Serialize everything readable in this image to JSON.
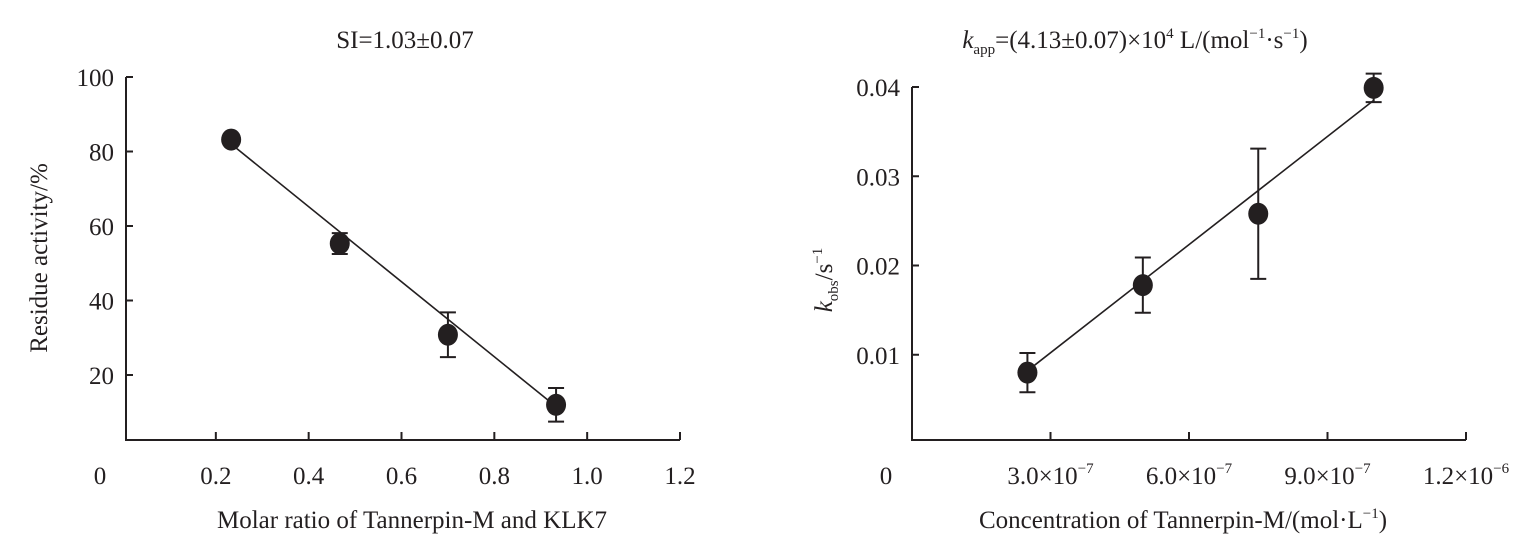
{
  "chart_data": [
    {
      "type": "scatter",
      "title": "SI=1.03±0.07",
      "xlabel": "Molar ratio of Tannerpin-M and KLK7",
      "ylabel": "Residue activity/%",
      "xlim": [
        0,
        1.2
      ],
      "ylim": [
        0,
        100
      ],
      "xticks": [
        "0",
        "0.2",
        "0.4",
        "0.6",
        "0.8",
        "1.0",
        "1.2"
      ],
      "xtick_values": [
        0,
        0.2,
        0.4,
        0.6,
        0.8,
        1.0,
        1.2
      ],
      "yticks": [
        "20",
        "40",
        "60",
        "80",
        "100"
      ],
      "ytick_values": [
        20,
        40,
        60,
        80,
        100
      ],
      "points": {
        "x": [
          0.233,
          0.467,
          0.7,
          0.933
        ],
        "y": [
          83.2,
          55.3,
          30.8,
          12.0
        ],
        "error": [
          1.0,
          2.8,
          6.0,
          4.5
        ]
      },
      "fit_line": {
        "x": [
          0.233,
          0.933
        ],
        "y": [
          82.0,
          11.5
        ]
      },
      "grid": false
    },
    {
      "type": "scatter",
      "title_parts": {
        "k": "k",
        "sub": "app",
        "main": "=(4.13±0.07)×10",
        "exp": "4",
        "unit1": " L/(mol",
        "exp2": "−1",
        "unit2": "·s",
        "exp3": "−1",
        "unit3": ")"
      },
      "xlabel_parts": {
        "main": "Concentration of Tannerpin-M/(mol·L",
        "exp": "−1",
        "end": ")"
      },
      "ylabel_parts": {
        "k": "k",
        "sub": "obs",
        "main": "/s",
        "exp": "−1"
      },
      "xlim": [
        0,
        1.2e-06
      ],
      "ylim": [
        0,
        0.04
      ],
      "xticks": [
        "0",
        "3.0×10",
        "6.0×10",
        "9.0×10",
        "1.2×10"
      ],
      "xtick_exps": [
        "",
        "−7",
        "−7",
        "−7",
        "−6"
      ],
      "xtick_values": [
        0,
        3e-07,
        6e-07,
        9e-07,
        1.2e-06
      ],
      "yticks": [
        "0.01",
        "0.02",
        "0.03",
        "0.04"
      ],
      "ytick_values": [
        0.01,
        0.02,
        0.03,
        0.04
      ],
      "points": {
        "x": [
          2.5e-07,
          5e-07,
          7.5e-07,
          1e-06
        ],
        "y": [
          0.008,
          0.0178,
          0.0258,
          0.0399
        ],
        "error": [
          0.0022,
          0.0031,
          0.0073,
          0.0016
        ]
      },
      "fit_line": {
        "x": [
          2.5e-07,
          1e-06
        ],
        "y": [
          0.0082,
          0.0385
        ]
      },
      "grid": false
    }
  ]
}
